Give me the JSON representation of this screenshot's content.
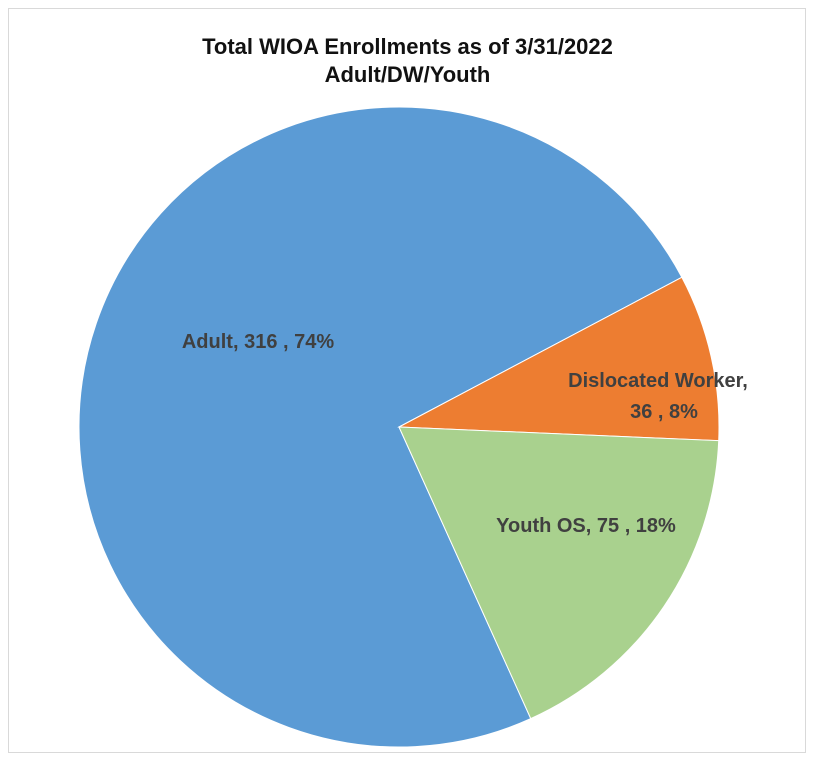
{
  "chart_data": {
    "type": "pie",
    "title": "Total WIOA Enrollments as of 3/31/2022",
    "subtitle": "Adult/DW/Youth",
    "slices": [
      {
        "name": "Adult",
        "value": 316,
        "percent": "74%",
        "color": "#5b9bd5",
        "label_line1": "Adult,  316 , 74%",
        "label_line2": ""
      },
      {
        "name": "Dislocated Worker",
        "value": 36,
        "percent": "8%",
        "color": "#ed7d31",
        "label_line1": "Dislocated Worker,",
        "label_line2": "36 , 8%"
      },
      {
        "name": "Youth OS",
        "value": 75,
        "percent": "18%",
        "color": "#a9d18e",
        "label_line1": "Youth OS,  75 , 18%",
        "label_line2": ""
      }
    ]
  }
}
